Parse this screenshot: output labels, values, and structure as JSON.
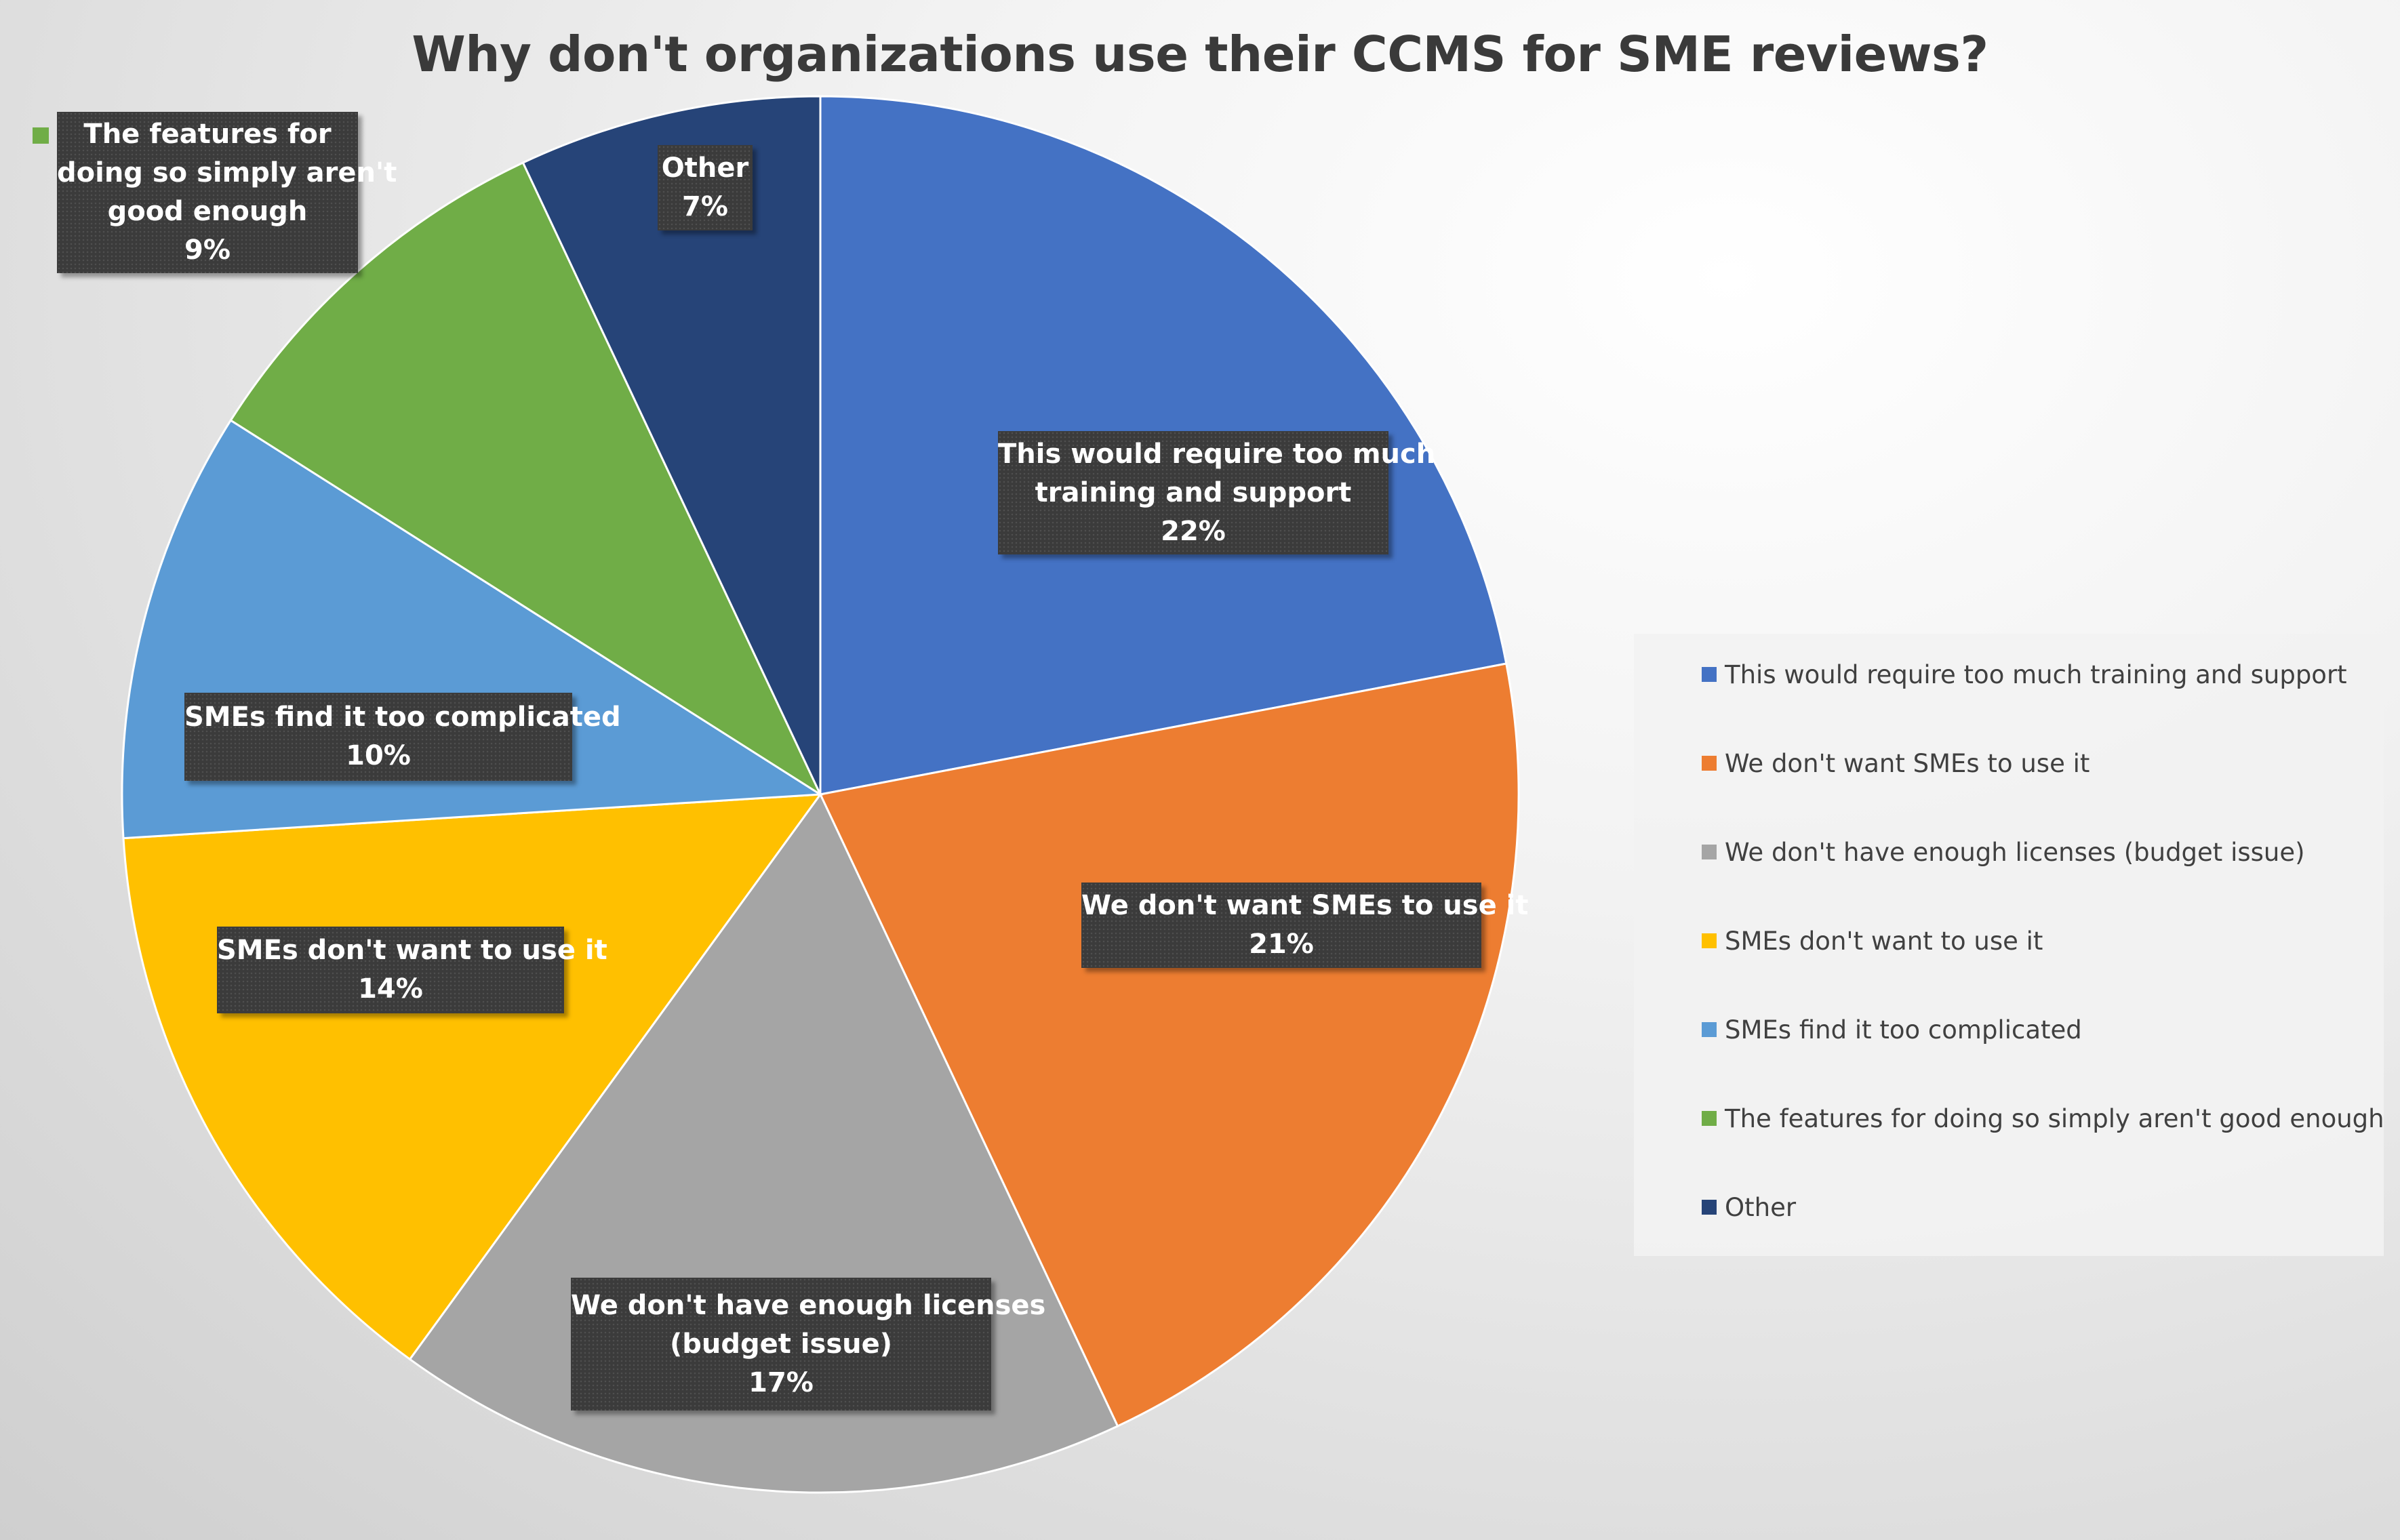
{
  "chart_data": {
    "type": "pie",
    "title": "Why don't organizations use their CCMS for SME reviews?",
    "start_angle_deg": 0,
    "direction": "clockwise",
    "slices": [
      {
        "label": "This would require too much training and support",
        "label_lines": [
          "This would require too much",
          "training and support"
        ],
        "value": 22,
        "display": "22%",
        "color": "#4472C4"
      },
      {
        "label": "We don't want SMEs to use it",
        "label_lines": [
          "We don't want SMEs to use it"
        ],
        "value": 21,
        "display": "21%",
        "color": "#ED7D31"
      },
      {
        "label": "We don't have enough licenses (budget issue)",
        "label_lines": [
          "We don't have enough licenses",
          "(budget issue)"
        ],
        "value": 17,
        "display": "17%",
        "color": "#A5A5A5"
      },
      {
        "label": "SMEs don't want to use it",
        "label_lines": [
          "SMEs don't want to use it"
        ],
        "value": 14,
        "display": "14%",
        "color": "#FFC000"
      },
      {
        "label": "SMEs find it too complicated",
        "label_lines": [
          "SMEs find it too complicated"
        ],
        "value": 10,
        "display": "10%",
        "color": "#5B9BD5"
      },
      {
        "label": "The features for doing so simply aren't good enough",
        "label_lines": [
          "The features for",
          "doing so simply aren't",
          "good enough"
        ],
        "value": 9,
        "display": "9%",
        "color": "#70AD47"
      },
      {
        "label": "Other",
        "label_lines": [
          "Other"
        ],
        "value": 7,
        "display": "7%",
        "color": "#264478"
      }
    ],
    "legend_position": "right"
  }
}
